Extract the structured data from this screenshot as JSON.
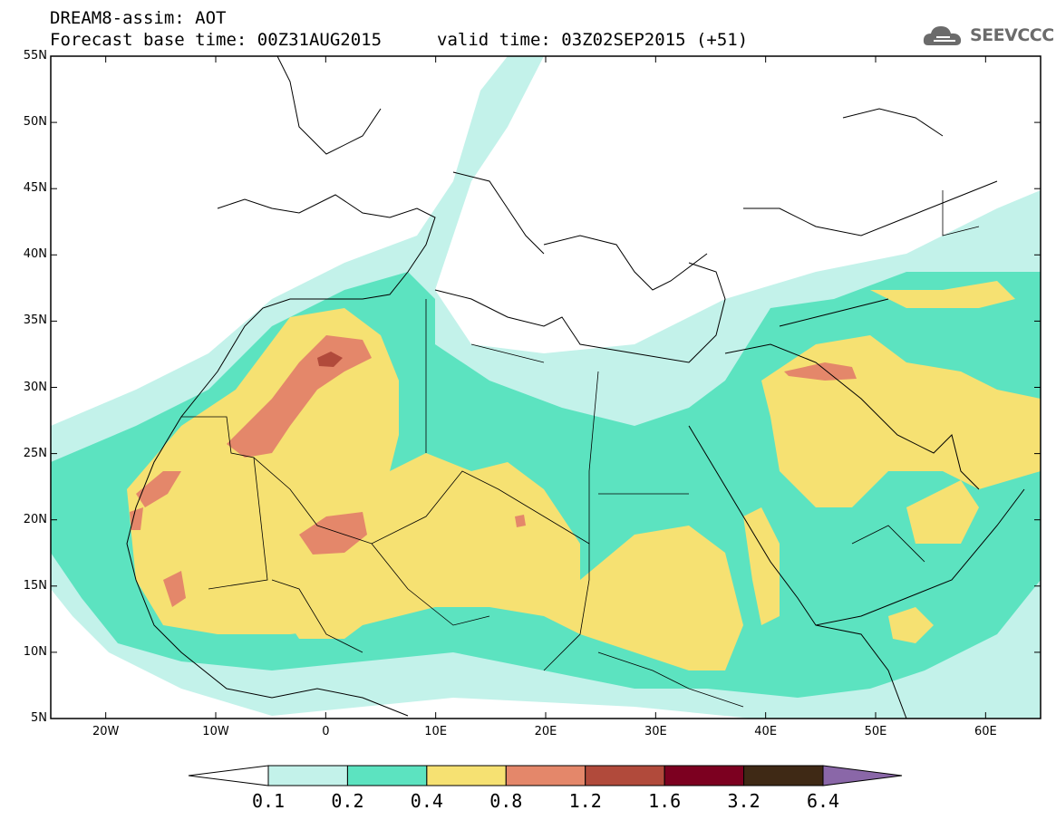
{
  "header": {
    "title": "DREAM8-assim: AOT",
    "base_time": "Forecast base time: 00Z31AUG2015",
    "valid_time": "valid time: 03Z02SEP2015 (+51)"
  },
  "logo": {
    "text": "SEEVCCC",
    "icon": "cloud-icon"
  },
  "map": {
    "lat_ticks": [
      "55N",
      "50N",
      "45N",
      "40N",
      "35N",
      "30N",
      "25N",
      "20N",
      "15N",
      "10N",
      "5N"
    ],
    "lon_ticks": [
      "20W",
      "10W",
      "0",
      "10E",
      "20E",
      "30E",
      "40E",
      "50E",
      "60E"
    ],
    "lat_range": [
      5,
      55
    ],
    "lon_range": [
      -25,
      65
    ],
    "colors": {
      "c1": "#c3f2ea",
      "c2": "#5ce3c0",
      "c3": "#f6e172",
      "c4": "#e4876a",
      "c5": "#b14a3b",
      "c6": "#7c0020",
      "c7": "#3f2915",
      "c8": "#8a67a8"
    }
  },
  "colorbar": {
    "labels": [
      "0.1",
      "0.2",
      "0.4",
      "0.8",
      "1.2",
      "1.6",
      "3.2",
      "6.4"
    ],
    "colors": [
      "#c3f2ea",
      "#5ce3c0",
      "#f6e172",
      "#e4876a",
      "#b14a3b",
      "#7c0020",
      "#3f2915"
    ],
    "over_color": "#8a67a8",
    "under_color": "#ffffff"
  }
}
